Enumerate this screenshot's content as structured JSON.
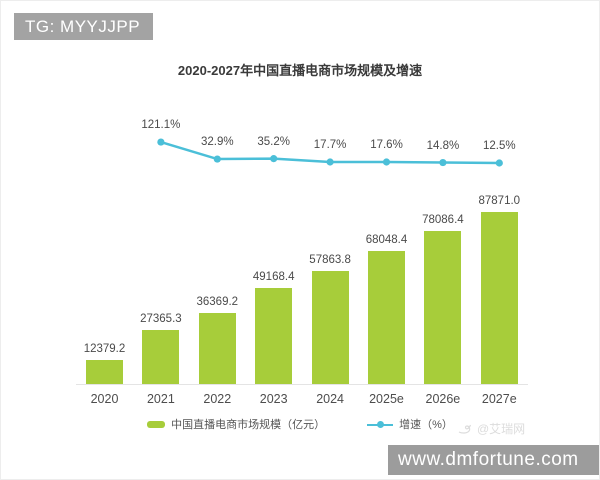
{
  "overlays": {
    "tg_badge": "TG: MYYJJPP",
    "site_watermark": "www.dmfortune.com",
    "source_watermark": "@艾瑞网"
  },
  "chart_data": {
    "type": "bar",
    "subtype": "combo-bar-line",
    "title": "2020-2027年中国直播电商市场规模及增速",
    "categories": [
      "2020",
      "2021",
      "2022",
      "2023",
      "2024",
      "2025e",
      "2026e",
      "2027e"
    ],
    "series": [
      {
        "name": "中国直播电商市场规模（亿元）",
        "type": "bar",
        "color": "#a7cd3a",
        "values": [
          12379.2,
          27365.3,
          36369.2,
          49168.4,
          57863.8,
          68048.4,
          78086.4,
          87871.0
        ]
      },
      {
        "name": "增速（%）",
        "type": "line",
        "color": "#4bbfd8",
        "values": [
          null,
          121.1,
          32.9,
          35.2,
          17.7,
          17.6,
          14.8,
          12.5
        ]
      }
    ],
    "ylabel": "",
    "xlabel": "",
    "grid": false,
    "axes_visible": false,
    "legend_position": "bottom",
    "value_labels_shown": true
  }
}
